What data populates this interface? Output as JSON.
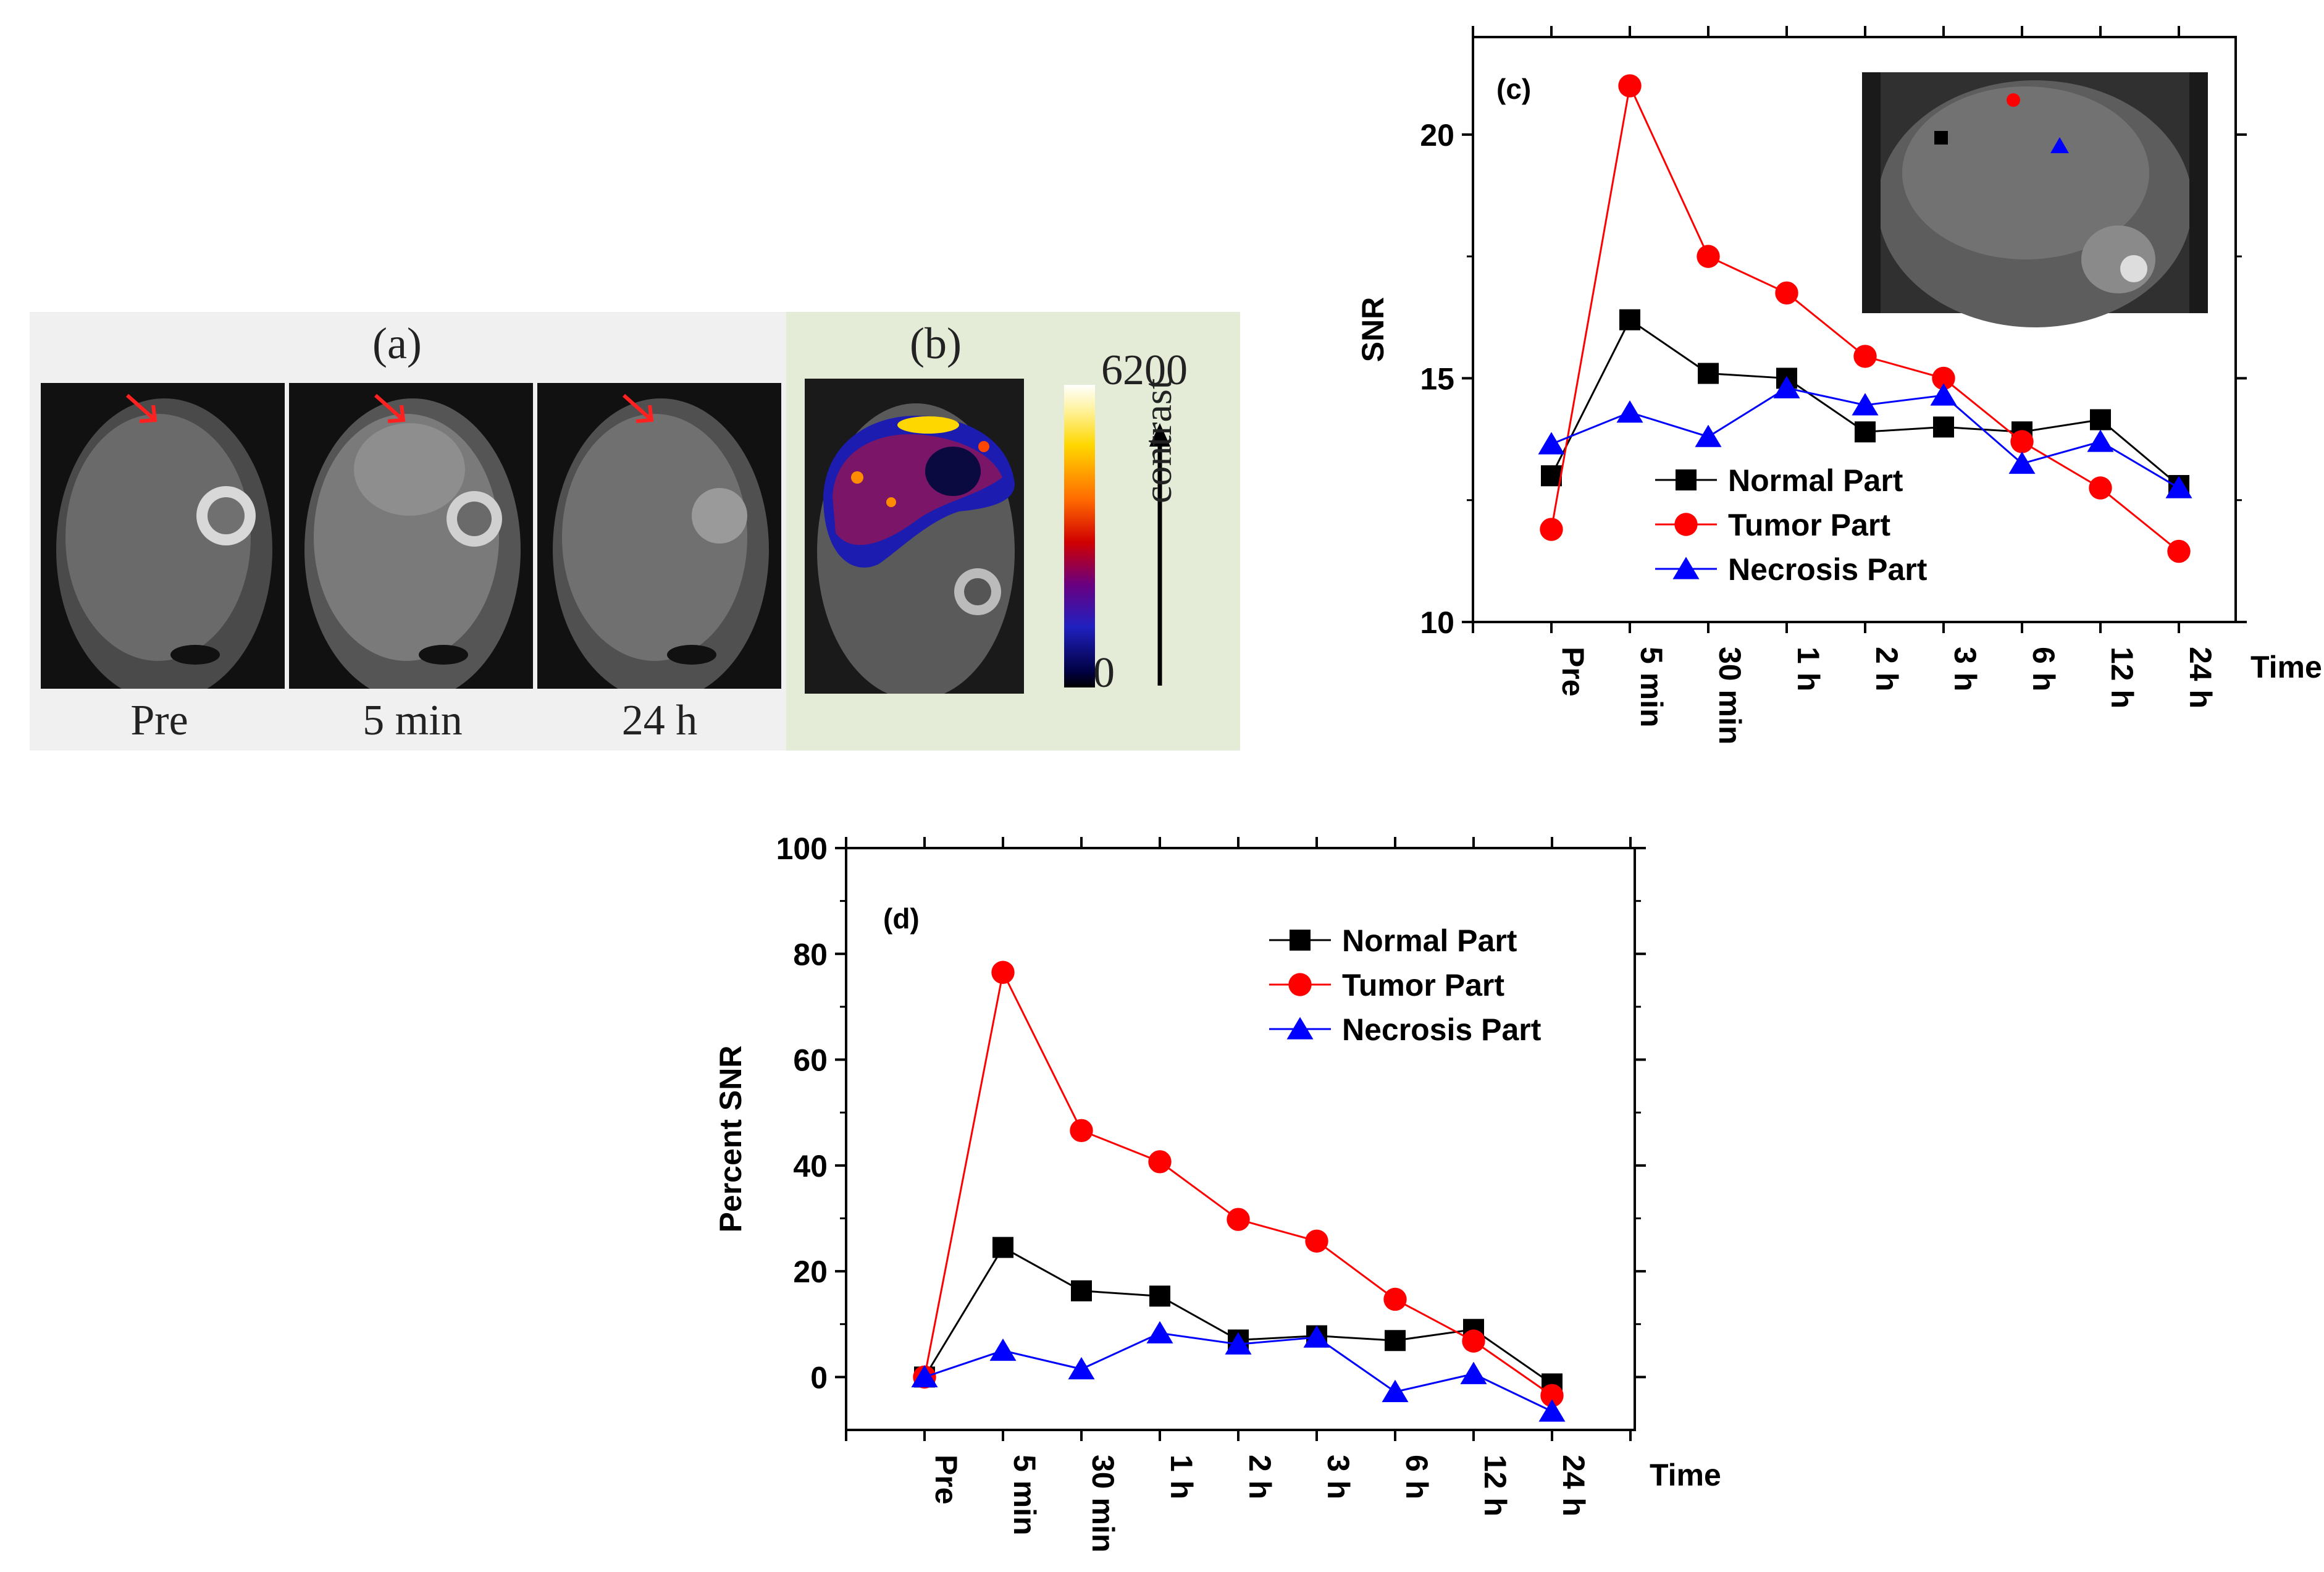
{
  "panels": {
    "a_label": "(a)",
    "b_label": "(b)",
    "time_labels": [
      "Pre",
      "5 min",
      "24 h"
    ],
    "colorbar": {
      "max": "6200",
      "min": "0",
      "axis_label": "contrast"
    }
  },
  "chart_data": [
    {
      "type": "line",
      "panel_label": "(c)",
      "title": "",
      "xlabel": "Time",
      "ylabel": "SNR",
      "categories": [
        "Pre",
        "5 min",
        "30 min",
        "1 h",
        "2 h",
        "3 h",
        "6 h",
        "12 h",
        "24 h"
      ],
      "ylim": [
        10,
        22
      ],
      "yticks": [
        10,
        15,
        20
      ],
      "legend_position": "center-left",
      "has_inset_image": true,
      "series": [
        {
          "name": "Normal Part",
          "color": "#000000",
          "marker": "square",
          "values": [
            13.0,
            16.2,
            15.1,
            15.0,
            13.9,
            14.0,
            13.9,
            14.15,
            12.8
          ]
        },
        {
          "name": "Tumor Part",
          "color": "#ff0000",
          "marker": "circle",
          "values": [
            11.9,
            21.0,
            17.5,
            16.75,
            15.45,
            15.0,
            13.7,
            12.75,
            11.45
          ]
        },
        {
          "name": "Necrosis Part",
          "color": "#0000ff",
          "marker": "triangle",
          "values": [
            13.65,
            14.3,
            13.8,
            14.8,
            14.45,
            14.65,
            13.25,
            13.7,
            12.75
          ]
        }
      ]
    },
    {
      "type": "line",
      "panel_label": "(d)",
      "title": "",
      "xlabel": "Time",
      "ylabel": "Percent SNR",
      "categories": [
        "Pre",
        "5 min",
        "30 min",
        "1 h",
        "2 h",
        "3 h",
        "6 h",
        "12 h",
        "24 h"
      ],
      "ylim": [
        -10,
        100
      ],
      "yticks": [
        0,
        20,
        40,
        60,
        80,
        100
      ],
      "legend_position": "top-right",
      "series": [
        {
          "name": "Normal Part",
          "color": "#000000",
          "marker": "square",
          "values": [
            0,
            24.5,
            16.3,
            15.3,
            7.0,
            7.8,
            6.9,
            9.0,
            -1.3
          ]
        },
        {
          "name": "Tumor Part",
          "color": "#ff0000",
          "marker": "circle",
          "values": [
            0,
            76.5,
            46.6,
            40.7,
            29.8,
            25.7,
            14.7,
            6.8,
            -3.5
          ]
        },
        {
          "name": "Necrosis Part",
          "color": "#0000ff",
          "marker": "triangle",
          "values": [
            0,
            5.0,
            1.5,
            8.3,
            6.2,
            7.5,
            -2.8,
            0.6,
            -6.5
          ]
        }
      ]
    }
  ]
}
